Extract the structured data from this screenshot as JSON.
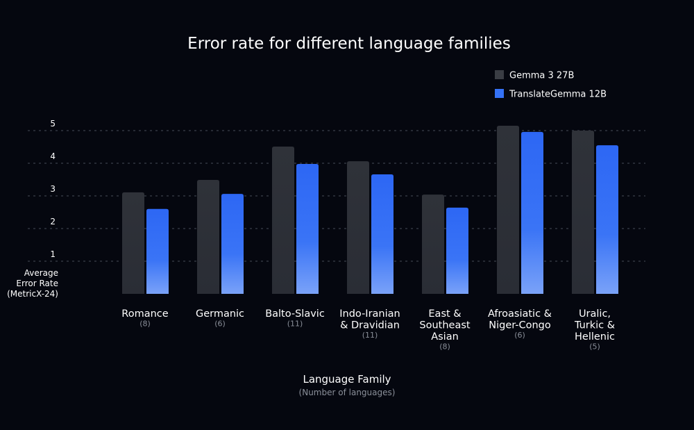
{
  "chart_data": {
    "type": "bar",
    "title": "Error rate for different language families",
    "xlabel": "Language Family",
    "xlabel_sub": "(Number of languages)",
    "ylabel": [
      "Average",
      "Error Rate",
      "(MetricX-24)"
    ],
    "ylim": [
      0,
      5.2
    ],
    "yticks": [
      "1",
      "2",
      "3",
      "4",
      "5"
    ],
    "grid": "horizontal dotted",
    "legend_position": "top-right",
    "categories": [
      {
        "lines": [
          "Romance"
        ],
        "count": "(8)"
      },
      {
        "lines": [
          "Germanic"
        ],
        "count": "(6)"
      },
      {
        "lines": [
          "Balto-Slavic"
        ],
        "count": "(11)"
      },
      {
        "lines": [
          "Indo-Iranian",
          "& Dravidian"
        ],
        "count": "(11)"
      },
      {
        "lines": [
          "East &",
          "Southeast",
          "Asian"
        ],
        "count": "(8)"
      },
      {
        "lines": [
          "Afroasiatic &",
          "Niger-Congo"
        ],
        "count": "(6)"
      },
      {
        "lines": [
          "Uralic,",
          "Turkic &",
          "Hellenic"
        ],
        "count": "(5)"
      }
    ],
    "series": [
      {
        "name": "Gemma 3 27B",
        "color": "#2e3139",
        "values": [
          3.11,
          3.49,
          4.51,
          4.06,
          3.04,
          5.15,
          5.0
        ]
      },
      {
        "name": "TranslateGemma 12B",
        "color": "#2f6cf5",
        "values": [
          2.6,
          3.06,
          3.98,
          3.66,
          2.64,
          4.96,
          4.55
        ]
      }
    ]
  }
}
